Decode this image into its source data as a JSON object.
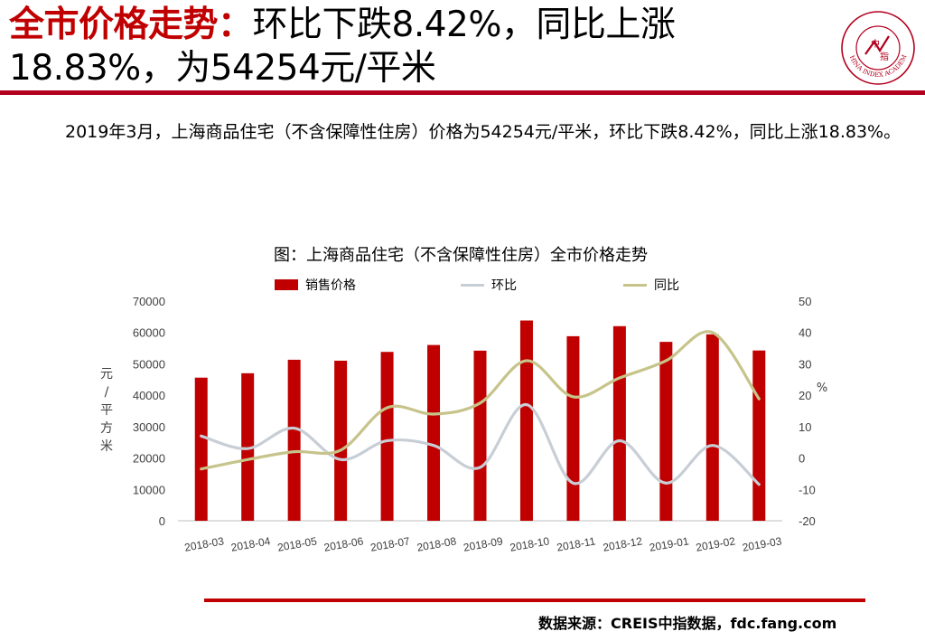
{
  "header": {
    "title_red": "全市价格走势：",
    "title_rest_line1": "环比下跌8.42%，同比上涨",
    "title_line2": "18.83%，为54254元/平米"
  },
  "logo": {
    "org_text": "CHINA INDEX ACADEMY",
    "center_top": "中",
    "center_bottom": "指",
    "color": "#b2001e"
  },
  "paragraph": {
    "text": "2019年3月，上海商品住宅（不含保障性住房）价格为54254元/平米，环比下跌8.42%，同比上涨18.83%。"
  },
  "chart_data": {
    "type": "bar",
    "title": "图：上海商品住宅（不含保障性住房）全市价格走势",
    "categories": [
      "2018-03",
      "2018-04",
      "2018-05",
      "2018-06",
      "2018-07",
      "2018-08",
      "2018-09",
      "2018-10",
      "2018-11",
      "2018-12",
      "2019-01",
      "2019-02",
      "2019-03"
    ],
    "series": [
      {
        "name": "销售价格",
        "kind": "bar",
        "axis": "left",
        "color": "#c00000",
        "values": [
          45600,
          47000,
          51300,
          51000,
          53800,
          56000,
          54200,
          63800,
          58800,
          62000,
          57000,
          59400,
          54254
        ]
      },
      {
        "name": "环比",
        "kind": "line",
        "axis": "right",
        "color": "#c8ced6",
        "values": [
          7,
          3,
          9.5,
          -0.5,
          5.5,
          4,
          -3,
          17,
          -8,
          5.5,
          -8,
          4,
          -8.42
        ]
      },
      {
        "name": "同比",
        "kind": "line",
        "axis": "right",
        "color": "#c6c48a",
        "values": [
          -3.5,
          -0.5,
          2,
          2.5,
          16,
          14,
          17.5,
          31,
          19.5,
          25.5,
          31,
          40,
          18.83
        ]
      }
    ],
    "left_axis": {
      "label": "元/平方米",
      "min": 0,
      "max": 70000,
      "ticks": [
        "0",
        "10000",
        "20000",
        "30000",
        "40000",
        "50000",
        "60000",
        "70000"
      ]
    },
    "right_axis": {
      "label": "%",
      "min": -20,
      "max": 50,
      "ticks": [
        "-20",
        "-10",
        "0",
        "10",
        "20",
        "30",
        "40",
        "50"
      ]
    },
    "grid": false,
    "legend_position": "top"
  },
  "footer": {
    "source": "数据来源：CREIS中指数据，fdc.fang.com"
  }
}
